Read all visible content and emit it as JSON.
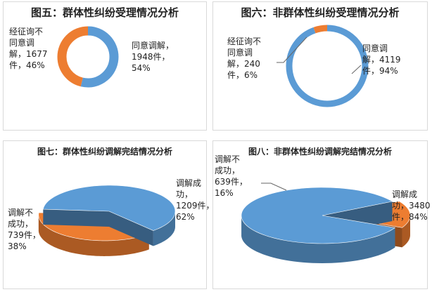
{
  "chart_data": [
    {
      "type": "pie",
      "variant": "donut",
      "title": "图五：群体性纠纷受理情况分析",
      "slices": [
        {
          "label_lines": [
            "同意调解，",
            "1948件，",
            "54%"
          ],
          "value": 1948,
          "percent": 54,
          "color": "#5b9bd5"
        },
        {
          "label_lines": [
            "经征询不",
            "同意调",
            "解，1677",
            "件，46%"
          ],
          "value": 1677,
          "percent": 46,
          "color": "#ed7d31"
        }
      ]
    },
    {
      "type": "pie",
      "variant": "donut",
      "title": "图六：非群体性纠纷受理情况分析",
      "slices": [
        {
          "label_lines": [
            "同意调",
            "解，4119",
            "件，94%"
          ],
          "value": 4119,
          "percent": 94,
          "color": "#5b9bd5"
        },
        {
          "label_lines": [
            "经征询不",
            "同意调",
            "解，240",
            "件，6%"
          ],
          "value": 240,
          "percent": 6,
          "color": "#ed7d31"
        }
      ]
    },
    {
      "type": "pie",
      "variant": "3d-exploded",
      "title": "图七：群体性纠纷调解完结情况分析",
      "slices": [
        {
          "label_lines": [
            "调解成",
            "功，",
            "1209件，",
            "62%"
          ],
          "value": 1209,
          "percent": 62,
          "color": "#5b9bd5"
        },
        {
          "label_lines": [
            "调解不",
            "成功，",
            "739件，",
            "38%"
          ],
          "value": 739,
          "percent": 38,
          "color": "#ed7d31"
        }
      ]
    },
    {
      "type": "pie",
      "variant": "3d-exploded",
      "title": "图八：非群体性纠纷调解完结情况分析",
      "slices": [
        {
          "label_lines": [
            "调解成",
            "功，3480",
            "件，84%"
          ],
          "value": 3480,
          "percent": 84,
          "color": "#5b9bd5"
        },
        {
          "label_lines": [
            "调解不",
            "成功，",
            "639件，",
            "16%"
          ],
          "value": 639,
          "percent": 16,
          "color": "#ed7d31"
        }
      ]
    }
  ]
}
